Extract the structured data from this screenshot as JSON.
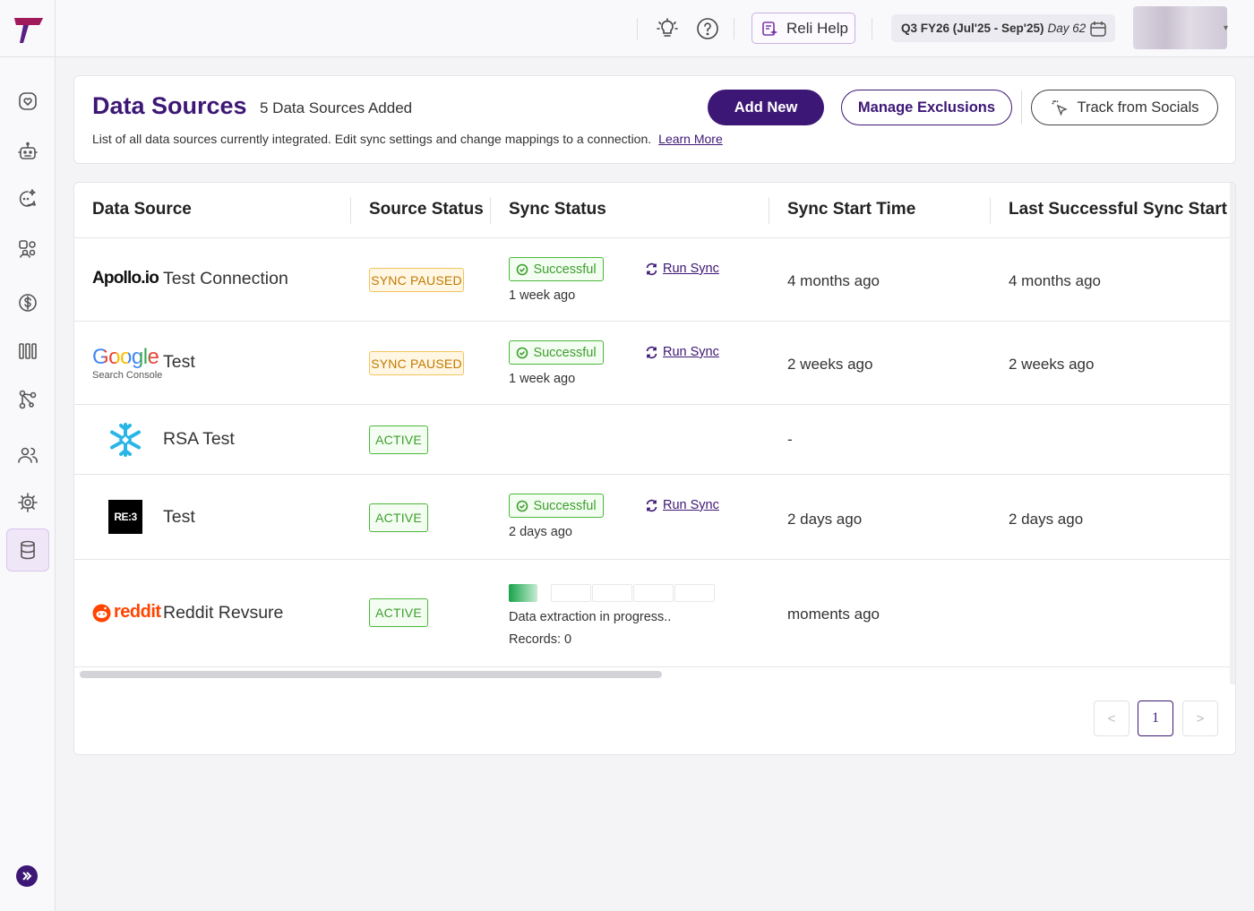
{
  "header": {
    "help_button_label": "Reli Help",
    "quarter_label": "Q3 FY26 (Jul'25 - Sep'25)",
    "day_label": "Day 62"
  },
  "sidebar": {
    "items": [
      {
        "icon": "heart-chat-icon"
      },
      {
        "icon": "robot-icon"
      },
      {
        "icon": "sparkle-chat-icon"
      },
      {
        "icon": "accounts-icon"
      },
      {
        "icon": "dollar-icon"
      },
      {
        "icon": "pipeline-icon"
      },
      {
        "icon": "network-icon"
      },
      {
        "icon": "users-icon"
      },
      {
        "icon": "settings-icon"
      },
      {
        "icon": "database-icon",
        "active": true
      }
    ]
  },
  "page": {
    "title": "Data Sources",
    "count_label": "5 Data Sources Added",
    "subtitle": "List of all data sources currently integrated. Edit sync settings and change mappings to a connection.",
    "learn_more": "Learn More",
    "add_new": "Add New",
    "manage_exclusions": "Manage Exclusions",
    "track_socials": "Track from Socials"
  },
  "table": {
    "columns": [
      "Data Source",
      "Source Status",
      "Sync Status",
      "Sync Start Time",
      "Last Successful Sync Start At"
    ],
    "run_sync_label": "Run Sync",
    "success_label": "Successful",
    "rows": [
      {
        "logo_text": "Apollo.io",
        "name": "Test Connection",
        "status": "SYNC PAUSED",
        "sync_ago": "1 week ago",
        "start_time": "4 months ago",
        "last_success": "4 months ago"
      },
      {
        "logo_text": "Google",
        "logo_sub": "Search Console",
        "name": "Test",
        "status": "SYNC PAUSED",
        "sync_ago": "1 week ago",
        "start_time": "2 weeks ago",
        "last_success": "2 weeks ago"
      },
      {
        "name": "RSA Test",
        "status": "ACTIVE",
        "start_time": "-"
      },
      {
        "logo_text": "RE:3",
        "name": "Test",
        "status": "ACTIVE",
        "sync_ago": "2 days ago",
        "start_time": "2 days ago",
        "last_success": "2 days ago"
      },
      {
        "logo_text": "reddit",
        "name": "Reddit Revsure",
        "status": "ACTIVE",
        "extraction_text": "Data extraction in progress..",
        "records_text": "Records: 0",
        "start_time": "moments ago"
      }
    ]
  },
  "pagination": {
    "current_page": "1",
    "prev": "<",
    "next": ">"
  },
  "colors": {
    "brand": "#3d1775",
    "success": "#3c9f2c",
    "paused": "#c17a00"
  }
}
